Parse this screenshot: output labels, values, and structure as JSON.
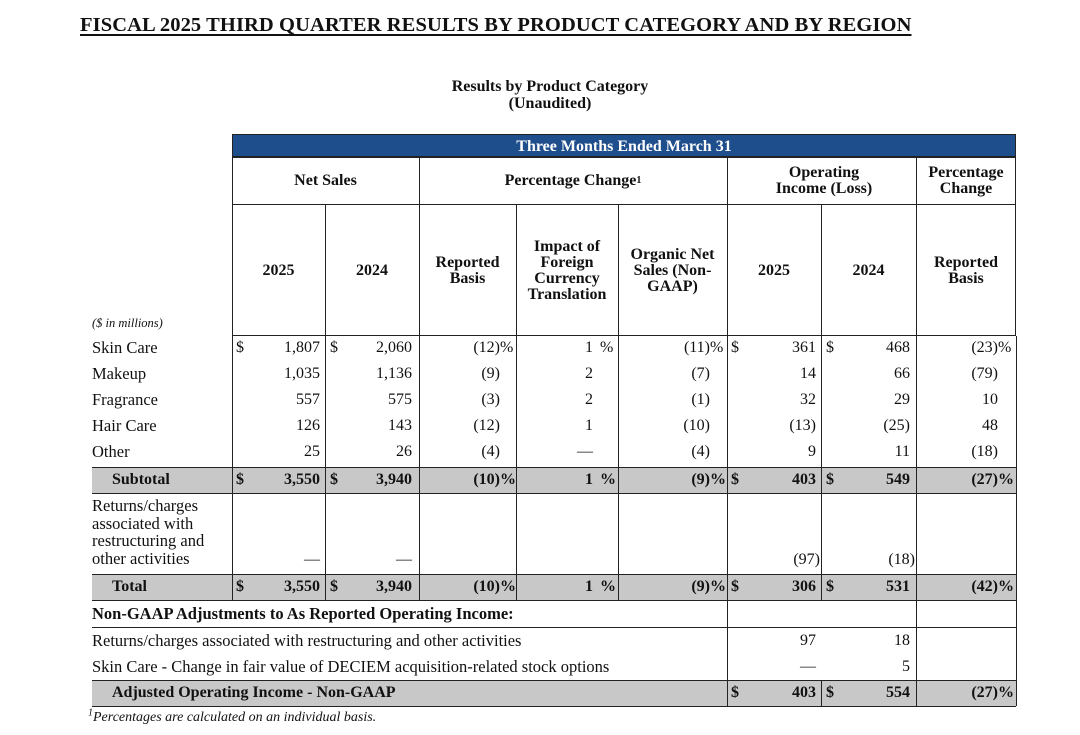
{
  "title": "FISCAL 2025 THIRD QUARTER RESULTS BY PRODUCT CATEGORY AND BY REGION",
  "subtitle_line1": "Results by Product Category",
  "subtitle_line2": "(Unaudited)",
  "banner": "Three Months Ended March 31",
  "groups": {
    "net_sales": "Net Sales",
    "pct_change": "Percentage Change",
    "pct_change_sup": "1",
    "op_income": "Operating Income (Loss)",
    "pct_change2": "Percentage Change"
  },
  "columns": {
    "ns_2025": "2025",
    "ns_2024": "2024",
    "reported": "Reported Basis",
    "fx": "Impact of Foreign Currency Translation",
    "organic": "Organic Net Sales (Non-GAAP)",
    "oi_2025": "2025",
    "oi_2024": "2024",
    "reported2": "Reported Basis"
  },
  "units_label": "($ in millions)",
  "rows": [
    {
      "label": "Skin Care",
      "ns25": "1,807",
      "ns24": "2,060",
      "rep": "(12)",
      "fx": "1",
      "org": "(11)",
      "oi25": "361",
      "oi24": "468",
      "pc": "(23)"
    },
    {
      "label": "Makeup",
      "ns25": "1,035",
      "ns24": "1,136",
      "rep": "(9)",
      "fx": "2",
      "org": "(7)",
      "oi25": "14",
      "oi24": "66",
      "pc": "(79)"
    },
    {
      "label": "Fragrance",
      "ns25": "557",
      "ns24": "575",
      "rep": "(3)",
      "fx": "2",
      "org": "(1)",
      "oi25": "32",
      "oi24": "29",
      "pc": "10"
    },
    {
      "label": "Hair Care",
      "ns25": "126",
      "ns24": "143",
      "rep": "(12)",
      "fx": "1",
      "org": "(10)",
      "oi25": "(13)",
      "oi24": "(25)",
      "pc": "48"
    },
    {
      "label": "Other",
      "ns25": "25",
      "ns24": "26",
      "rep": "(4)",
      "fx": "—",
      "org": "(4)",
      "oi25": "9",
      "oi24": "11",
      "pc": "(18)"
    }
  ],
  "subtotal": {
    "label": "Subtotal",
    "ns25": "3,550",
    "ns24": "3,940",
    "rep": "(10)",
    "fx": "1",
    "org": "(9)",
    "oi25": "403",
    "oi24": "549",
    "pc": "(27)"
  },
  "returns": {
    "label_l1": "Returns/charges",
    "label_l2": "associated with",
    "label_l3": "restructuring and",
    "label_l4": "other activities",
    "ns25": "—",
    "ns24": "—",
    "oi25": "(97)",
    "oi24": "(18)"
  },
  "total": {
    "label": "Total",
    "ns25": "3,550",
    "ns24": "3,940",
    "rep": "(10)",
    "fx": "1",
    "org": "(9)",
    "oi25": "306",
    "oi24": "531",
    "pc": "(42)"
  },
  "nongaap_heading": "Non-GAAP Adjustments to As Reported Operating Income:",
  "adj1": {
    "label": "Returns/charges associated with restructuring and other activities",
    "oi25": "97",
    "oi24": "18"
  },
  "adj2": {
    "label": "Skin Care - Change in fair value of DECIEM acquisition-related stock options",
    "oi25": "—",
    "oi24": "5"
  },
  "adjusted": {
    "label": "Adjusted Operating Income - Non-GAAP",
    "oi25": "403",
    "oi24": "554",
    "pc": "(27)"
  },
  "symbols": {
    "dollar": "$",
    "pct": "%"
  },
  "footnote_sup": "1",
  "footnote": "Percentages are calculated on an individual basis.",
  "colors": {
    "banner": "#1f4e8c",
    "shade": "#c8c8c8"
  }
}
